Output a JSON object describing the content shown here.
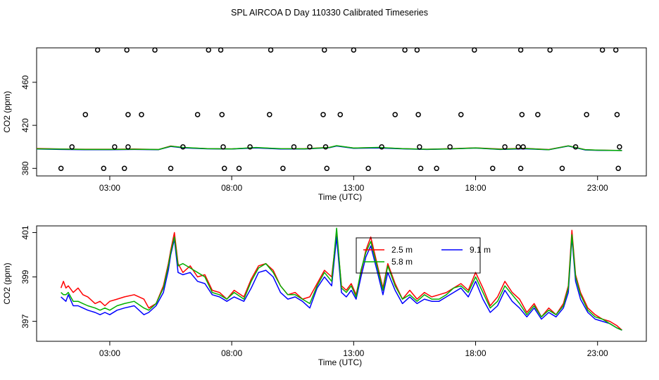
{
  "title": "SPL AIRCOA D  Day 110330  Calibrated Timeseries",
  "chart_data": [
    {
      "type": "line",
      "panel": "top",
      "xlabel": "Time (UTC)",
      "ylabel": "CO2 (ppm)",
      "xlim": [
        0,
        25
      ],
      "ylim": [
        373,
        492
      ],
      "xticks": [
        {
          "v": 3,
          "label": "03:00"
        },
        {
          "v": 8,
          "label": "08:00"
        },
        {
          "v": 13,
          "label": "13:00"
        },
        {
          "v": 18,
          "label": "18:00"
        },
        {
          "v": 23,
          "label": "23:00"
        }
      ],
      "yticks": [
        {
          "v": 380,
          "label": "380"
        },
        {
          "v": 420,
          "label": "420"
        },
        {
          "v": 460,
          "label": "460"
        }
      ],
      "calibration_points": {
        "x": [
          1.45,
          2.0,
          2.5,
          1.0,
          3.2,
          3.7,
          3.75,
          3.75,
          3.6,
          2.75,
          4.3,
          4.85,
          5.5,
          6.0,
          6.6,
          7.05,
          7.55,
          7.6,
          7.65,
          7.7,
          8.3,
          8.75,
          9.55,
          9.6,
          10.1,
          10.55,
          11.2,
          11.75,
          11.8,
          11.85,
          11.9,
          12.45,
          13.0,
          13.6,
          14.15,
          14.7,
          15.1,
          15.6,
          15.65,
          15.7,
          15.75,
          16.4,
          16.95,
          17.4,
          17.95,
          18.7,
          19.2,
          19.85,
          19.9,
          19.95,
          19.85,
          19.75,
          20.55,
          21.05,
          21.55,
          22.1,
          22.55,
          23.2,
          23.75,
          23.8,
          23.85,
          23.9
        ],
        "y": [
          400,
          430,
          490,
          380,
          400,
          490,
          430,
          400,
          380,
          380,
          430,
          490,
          380,
          400,
          430,
          490,
          490,
          430,
          400,
          380,
          380,
          400,
          430,
          490,
          380,
          400,
          400,
          430,
          490,
          400,
          380,
          430,
          490,
          380,
          400,
          430,
          490,
          490,
          430,
          400,
          380,
          380,
          400,
          430,
          490,
          380,
          400,
          490,
          430,
          400,
          380,
          400,
          430,
          490,
          380,
          400,
          430,
          490,
          490,
          430,
          380,
          400
        ]
      },
      "series": [
        {
          "name": "2.5 m",
          "color": "#ff0000",
          "x": [
            0,
            1,
            2,
            3,
            4,
            5,
            5.5,
            6,
            7,
            8,
            9,
            10,
            11,
            12,
            12.3,
            13,
            14,
            15,
            16,
            17,
            18,
            19,
            20,
            21,
            21.8,
            22.5,
            23,
            24
          ],
          "y": [
            398.5,
            398,
            397.8,
            397.8,
            398,
            397.5,
            400.8,
            399.3,
            398.3,
            398.1,
            399.2,
            398.2,
            398.3,
            399.5,
            401,
            398.9,
            399.3,
            398.4,
            397.8,
            398.3,
            399.1,
            398,
            398.6,
            397.5,
            401,
            397.4,
            396.9,
            396.6
          ]
        },
        {
          "name": "9.1 m",
          "color": "#0000ff",
          "x": [
            0,
            1,
            2,
            3,
            4,
            5,
            5.5,
            6,
            7,
            8,
            9,
            10,
            11,
            12,
            12.3,
            13,
            14,
            15,
            16,
            17,
            18,
            19,
            20,
            21,
            21.8,
            22.5,
            23,
            24
          ],
          "y": [
            398,
            397.6,
            397.3,
            397.4,
            397.6,
            397.4,
            400.4,
            399.1,
            398.2,
            398,
            399,
            398,
            398,
            399.2,
            400.8,
            398.7,
            399,
            398.2,
            397.6,
            398.1,
            398.9,
            397.6,
            398.2,
            397.3,
            400.8,
            397.1,
            396.8,
            396.6
          ]
        },
        {
          "name": "5.8 m",
          "color": "#00b000",
          "x": [
            0,
            1,
            2,
            3,
            4,
            5,
            5.5,
            6,
            7,
            8,
            9,
            10,
            11,
            12,
            12.3,
            13,
            14,
            15,
            16,
            17,
            18,
            19,
            20,
            21,
            21.8,
            22.5,
            23,
            24
          ],
          "y": [
            398.2,
            397.9,
            397.6,
            397.6,
            397.8,
            397.5,
            400.6,
            399.5,
            398.4,
            398.1,
            399.4,
            398.3,
            398.2,
            399.4,
            401.1,
            398.9,
            399.5,
            398.3,
            397.8,
            398.2,
            399,
            397.8,
            398.5,
            397.4,
            400.9,
            397.3,
            396.9,
            396.6
          ]
        }
      ]
    },
    {
      "type": "line",
      "panel": "bottom",
      "xlabel": "Time (UTC)",
      "ylabel": "CO2 (ppm)",
      "xlim": [
        0,
        25
      ],
      "ylim": [
        396.1,
        401.3
      ],
      "xticks": [
        {
          "v": 3,
          "label": "03:00"
        },
        {
          "v": 8,
          "label": "08:00"
        },
        {
          "v": 13,
          "label": "13:00"
        },
        {
          "v": 18,
          "label": "18:00"
        },
        {
          "v": 23,
          "label": "23:00"
        }
      ],
      "yticks": [
        {
          "v": 397,
          "label": "397"
        },
        {
          "v": 399,
          "label": "399"
        },
        {
          "v": 401,
          "label": "401"
        }
      ],
      "legend": [
        {
          "name": "2.5 m",
          "color": "#ff0000"
        },
        {
          "name": "9.1 m",
          "color": "#0000ff"
        },
        {
          "name": "5.8 m",
          "color": "#00b000"
        }
      ],
      "series": [
        {
          "name": "2.5 m",
          "color": "#ff0000",
          "x": [
            1.0,
            1.1,
            1.2,
            1.3,
            1.5,
            1.7,
            1.9,
            2.1,
            2.4,
            2.6,
            2.8,
            3.0,
            3.3,
            3.6,
            4.0,
            4.4,
            4.6,
            4.9,
            5.2,
            5.4,
            5.5,
            5.65,
            5.8,
            6.0,
            6.3,
            6.6,
            6.9,
            7.2,
            7.5,
            7.8,
            8.1,
            8.5,
            8.8,
            9.1,
            9.4,
            9.7,
            10.0,
            10.3,
            10.6,
            10.9,
            11.2,
            11.5,
            11.8,
            12.1,
            12.3,
            12.5,
            12.7,
            12.9,
            13.1,
            13.3,
            13.5,
            13.7,
            14.0,
            14.2,
            14.4,
            14.7,
            15.0,
            15.3,
            15.6,
            15.9,
            16.2,
            16.5,
            16.8,
            17.1,
            17.4,
            17.7,
            18.0,
            18.3,
            18.6,
            18.9,
            19.2,
            19.5,
            19.8,
            20.1,
            20.4,
            20.7,
            21.0,
            21.3,
            21.6,
            21.8,
            21.95,
            22.1,
            22.3,
            22.6,
            22.9,
            23.2,
            23.5,
            23.8,
            24.0
          ],
          "y": [
            398.5,
            398.8,
            398.5,
            398.6,
            398.3,
            398.5,
            398.2,
            398.1,
            397.8,
            397.9,
            397.7,
            397.9,
            398.0,
            398.1,
            398.2,
            398.0,
            397.6,
            397.8,
            398.6,
            399.6,
            400.2,
            401.0,
            399.6,
            399.2,
            399.5,
            399.0,
            399.1,
            398.4,
            398.3,
            398.0,
            398.4,
            398.1,
            398.9,
            399.5,
            399.6,
            399.3,
            398.6,
            398.2,
            398.3,
            398.0,
            398.1,
            398.7,
            399.3,
            399.0,
            401.0,
            398.6,
            398.4,
            398.7,
            398.2,
            399.2,
            400.2,
            400.8,
            399.4,
            398.5,
            399.6,
            398.7,
            398.0,
            398.4,
            398.0,
            398.3,
            398.1,
            398.2,
            398.3,
            398.5,
            398.7,
            398.4,
            399.2,
            398.5,
            397.7,
            398.1,
            398.8,
            398.3,
            398.0,
            397.4,
            397.8,
            397.2,
            397.6,
            397.3,
            397.8,
            398.6,
            401.1,
            399.1,
            398.3,
            397.6,
            397.3,
            397.1,
            397.0,
            396.8,
            396.6
          ]
        },
        {
          "name": "9.1 m",
          "color": "#0000ff",
          "x": [
            1.0,
            1.1,
            1.2,
            1.3,
            1.5,
            1.7,
            1.9,
            2.1,
            2.4,
            2.6,
            2.8,
            3.0,
            3.3,
            3.6,
            4.0,
            4.4,
            4.6,
            4.9,
            5.2,
            5.4,
            5.5,
            5.65,
            5.8,
            6.0,
            6.3,
            6.6,
            6.9,
            7.2,
            7.5,
            7.8,
            8.1,
            8.5,
            8.8,
            9.1,
            9.4,
            9.7,
            10.0,
            10.3,
            10.6,
            10.9,
            11.2,
            11.5,
            11.8,
            12.1,
            12.3,
            12.5,
            12.7,
            12.9,
            13.1,
            13.3,
            13.5,
            13.7,
            14.0,
            14.2,
            14.4,
            14.7,
            15.0,
            15.3,
            15.6,
            15.9,
            16.2,
            16.5,
            16.8,
            17.1,
            17.4,
            17.7,
            18.0,
            18.3,
            18.6,
            18.9,
            19.2,
            19.5,
            19.8,
            20.1,
            20.4,
            20.7,
            21.0,
            21.3,
            21.6,
            21.8,
            21.95,
            22.1,
            22.3,
            22.6,
            22.9,
            23.2,
            23.5,
            23.8,
            24.0
          ],
          "y": [
            398.1,
            398.0,
            397.9,
            398.2,
            397.7,
            397.7,
            397.6,
            397.5,
            397.4,
            397.3,
            397.4,
            397.3,
            397.5,
            397.6,
            397.7,
            397.3,
            397.4,
            397.7,
            398.3,
            399.3,
            400.0,
            400.7,
            399.2,
            399.1,
            399.2,
            398.8,
            398.7,
            398.2,
            398.1,
            397.9,
            398.1,
            397.9,
            398.5,
            399.2,
            399.3,
            399.0,
            398.3,
            398.0,
            398.1,
            397.9,
            397.6,
            398.5,
            399.0,
            398.6,
            400.8,
            398.3,
            398.1,
            398.4,
            398.0,
            399.0,
            399.9,
            400.4,
            399.1,
            398.2,
            399.2,
            398.4,
            397.8,
            398.1,
            397.8,
            398.0,
            397.9,
            397.9,
            398.1,
            398.3,
            398.5,
            398.1,
            398.8,
            398.0,
            397.4,
            397.7,
            398.4,
            397.9,
            397.6,
            397.2,
            397.6,
            397.1,
            397.4,
            397.2,
            397.6,
            398.3,
            400.8,
            398.8,
            398.0,
            397.4,
            397.1,
            397.0,
            396.9,
            396.7,
            396.6
          ]
        },
        {
          "name": "5.8 m",
          "color": "#00b000",
          "x": [
            1.0,
            1.1,
            1.2,
            1.3,
            1.5,
            1.7,
            1.9,
            2.1,
            2.4,
            2.6,
            2.8,
            3.0,
            3.3,
            3.6,
            4.0,
            4.4,
            4.6,
            4.9,
            5.2,
            5.4,
            5.5,
            5.65,
            5.8,
            6.0,
            6.3,
            6.6,
            6.9,
            7.2,
            7.5,
            7.8,
            8.1,
            8.5,
            8.8,
            9.1,
            9.4,
            9.7,
            10.0,
            10.3,
            10.6,
            10.9,
            11.2,
            11.5,
            11.8,
            12.1,
            12.3,
            12.5,
            12.7,
            12.9,
            13.1,
            13.3,
            13.5,
            13.7,
            14.0,
            14.2,
            14.4,
            14.7,
            15.0,
            15.3,
            15.6,
            15.9,
            16.2,
            16.5,
            16.8,
            17.1,
            17.4,
            17.7,
            18.0,
            18.3,
            18.6,
            18.9,
            19.2,
            19.5,
            19.8,
            20.1,
            20.4,
            20.7,
            21.0,
            21.3,
            21.6,
            21.8,
            21.95,
            22.1,
            22.3,
            22.6,
            22.9,
            23.2,
            23.5,
            23.8,
            24.0
          ],
          "y": [
            398.3,
            398.2,
            398.2,
            398.3,
            397.9,
            397.9,
            397.8,
            397.7,
            397.6,
            397.5,
            397.6,
            397.5,
            397.7,
            397.8,
            397.9,
            397.6,
            397.5,
            397.8,
            398.5,
            399.5,
            400.1,
            400.8,
            399.5,
            399.6,
            399.4,
            399.2,
            399.0,
            398.3,
            398.2,
            398.0,
            398.3,
            398.0,
            398.8,
            399.4,
            399.6,
            399.2,
            398.6,
            398.2,
            398.2,
            398.0,
            397.8,
            398.6,
            399.2,
            398.8,
            401.2,
            398.5,
            398.3,
            398.6,
            398.1,
            399.3,
            400.1,
            400.6,
            399.3,
            398.4,
            399.5,
            398.6,
            398.0,
            398.2,
            397.9,
            398.2,
            398.0,
            398.0,
            398.2,
            398.5,
            398.6,
            398.3,
            399.0,
            398.3,
            397.6,
            397.9,
            398.6,
            398.2,
            397.8,
            397.3,
            397.7,
            397.2,
            397.5,
            397.3,
            397.7,
            398.5,
            400.9,
            399.0,
            398.2,
            397.5,
            397.2,
            397.1,
            396.9,
            396.7,
            396.6
          ]
        }
      ]
    }
  ]
}
